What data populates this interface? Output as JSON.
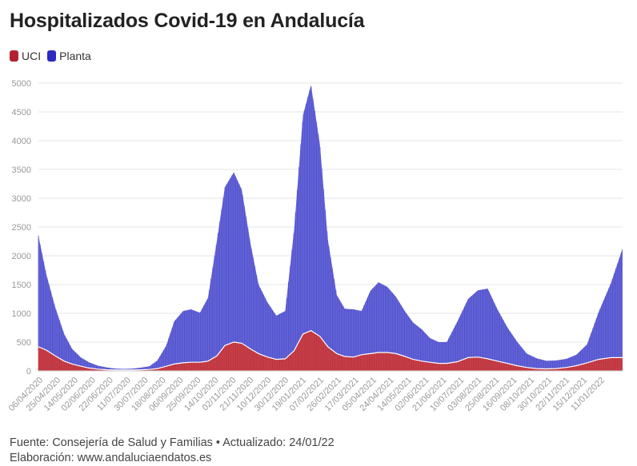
{
  "title": "Hospitalizados Covid-19 en Andalucía",
  "colors": {
    "uci": "#b22530",
    "planta": "#3a3ac8",
    "planta_fill": "#6b6bd8",
    "uci_fill": "#c9434c",
    "grid": "#e6e6e6"
  },
  "legend": [
    {
      "label": "UCI",
      "color": "#b22530"
    },
    {
      "label": "Planta",
      "color": "#2b2bc0"
    }
  ],
  "footer": {
    "source": "Fuente: Consejería de Salud y Familias • Actualizado: 24/01/22",
    "credit": "Elaboración: www.andaluciaendatos.es"
  },
  "chart_data": {
    "type": "area",
    "stacked": true,
    "title": "Hospitalizados Covid-19 en Andalucía",
    "xlabel": "",
    "ylabel": "",
    "ylim": [
      0,
      5000
    ],
    "yticks": [
      0,
      500,
      1000,
      1500,
      2000,
      2500,
      3000,
      3500,
      4000,
      4500,
      5000
    ],
    "grid": true,
    "legend_position": "top-left",
    "xticks": [
      "06/04/2020",
      "25/04/2020",
      "14/05/2020",
      "02/06/2020",
      "22/06/2020",
      "11/07/2020",
      "30/07/2020",
      "18/08/2020",
      "06/09/2020",
      "25/09/2020",
      "14/10/2020",
      "02/11/2020",
      "21/11/2020",
      "10/12/2020",
      "30/12/2020",
      "19/01/2021",
      "07/02/2021",
      "26/02/2021",
      "17/03/2021",
      "05/04/2021",
      "24/04/2021",
      "14/05/2021",
      "02/06/2021",
      "21/06/2021",
      "10/07/2021",
      "03/08/2021",
      "25/08/2021",
      "16/09/2021",
      "08/10/2021",
      "30/10/2021",
      "22/11/2021",
      "15/12/2021",
      "11/01/2022"
    ],
    "x": [
      "06/04/2020",
      "15/04/2020",
      "25/04/2020",
      "05/05/2020",
      "14/05/2020",
      "24/05/2020",
      "02/06/2020",
      "12/06/2020",
      "22/06/2020",
      "02/07/2020",
      "11/07/2020",
      "21/07/2020",
      "30/07/2020",
      "09/08/2020",
      "18/08/2020",
      "28/08/2020",
      "06/09/2020",
      "16/09/2020",
      "25/09/2020",
      "05/10/2020",
      "14/10/2020",
      "24/10/2020",
      "02/11/2020",
      "12/11/2020",
      "21/11/2020",
      "01/12/2020",
      "10/12/2020",
      "20/12/2020",
      "30/12/2020",
      "09/01/2021",
      "19/01/2021",
      "29/01/2021",
      "07/02/2021",
      "17/02/2021",
      "26/02/2021",
      "08/03/2021",
      "17/03/2021",
      "27/03/2021",
      "05/04/2021",
      "15/04/2021",
      "24/04/2021",
      "04/05/2021",
      "14/05/2021",
      "24/05/2021",
      "02/06/2021",
      "12/06/2021",
      "21/06/2021",
      "01/07/2021",
      "10/07/2021",
      "22/07/2021",
      "03/08/2021",
      "14/08/2021",
      "25/08/2021",
      "05/09/2021",
      "16/09/2021",
      "27/09/2021",
      "08/10/2021",
      "19/10/2021",
      "30/10/2021",
      "10/11/2021",
      "22/11/2021",
      "03/12/2021",
      "15/12/2021",
      "28/12/2021",
      "11/01/2022",
      "24/01/2022"
    ],
    "series": [
      {
        "name": "UCI",
        "values": [
          420,
          360,
          260,
          170,
          120,
          80,
          50,
          30,
          20,
          15,
          15,
          15,
          20,
          25,
          40,
          80,
          120,
          140,
          150,
          150,
          170,
          260,
          440,
          500,
          480,
          380,
          300,
          240,
          200,
          210,
          350,
          640,
          700,
          600,
          420,
          300,
          250,
          240,
          280,
          300,
          320,
          320,
          300,
          250,
          200,
          170,
          150,
          130,
          130,
          160,
          230,
          240,
          210,
          170,
          130,
          90,
          60,
          40,
          35,
          40,
          60,
          90,
          140,
          200,
          230,
          230
        ]
      },
      {
        "name": "Planta",
        "values": [
          1930,
          1310,
          840,
          470,
          260,
          150,
          100,
          60,
          40,
          25,
          20,
          25,
          35,
          55,
          140,
          360,
          740,
          900,
          920,
          860,
          1100,
          2000,
          2750,
          2950,
          2670,
          1820,
          1200,
          950,
          760,
          830,
          2100,
          3800,
          4270,
          3340,
          1860,
          1020,
          830,
          830,
          760,
          1090,
          1220,
          1140,
          980,
          780,
          640,
          550,
          420,
          370,
          370,
          700,
          1020,
          1160,
          1220,
          900,
          630,
          420,
          240,
          180,
          140,
          140,
          150,
          190,
          320,
          820,
          1300,
          1900
        ]
      }
    ]
  }
}
